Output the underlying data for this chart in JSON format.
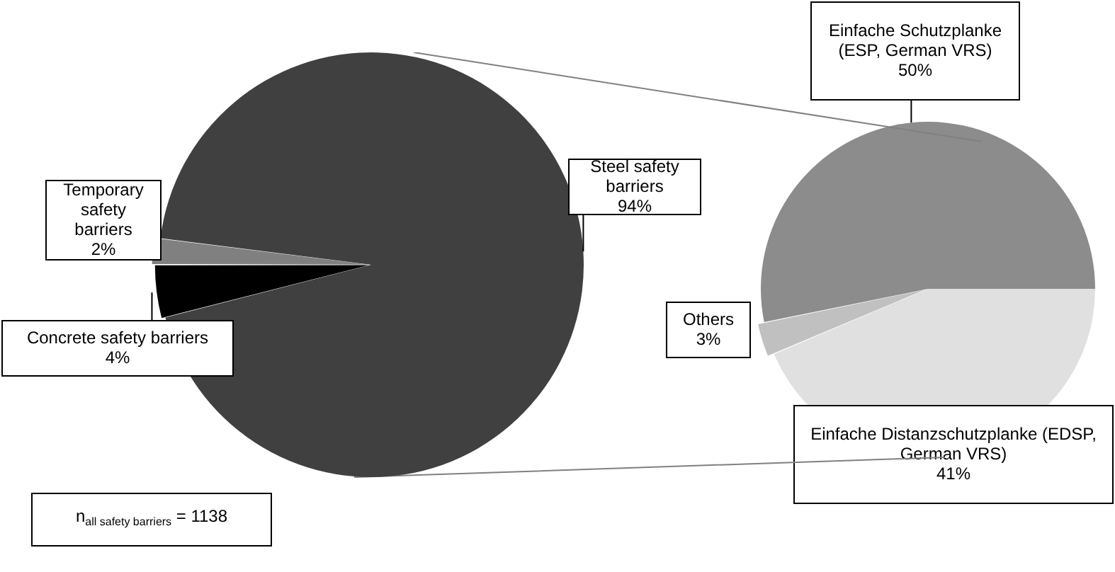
{
  "chart_data": [
    {
      "type": "pie",
      "categories": [
        "Concrete safety barriers",
        "Temporary safety barriers",
        "Steel safety barriers"
      ],
      "values": [
        4,
        2,
        94
      ],
      "value_labels": [
        "4%",
        "2%",
        "94%"
      ],
      "colors": [
        "#000000",
        "#808080",
        "#404040"
      ],
      "legend": false,
      "annotations": [
        "n$_{all safety barriers}$ = 1138"
      ]
    },
    {
      "type": "pie",
      "categories": [
        "Einfache Distanzschutzplanke (EDSP, German VRS)",
        "Others",
        "Einfache Schutzplanke (ESP, German VRS)"
      ],
      "values": [
        41,
        3,
        50
      ],
      "value_labels": [
        "41%",
        "3%",
        "50%"
      ],
      "colors": [
        "#e0e0e0",
        "#c0c0c0",
        "#8c8c8c"
      ],
      "legend": false
    }
  ]
}
